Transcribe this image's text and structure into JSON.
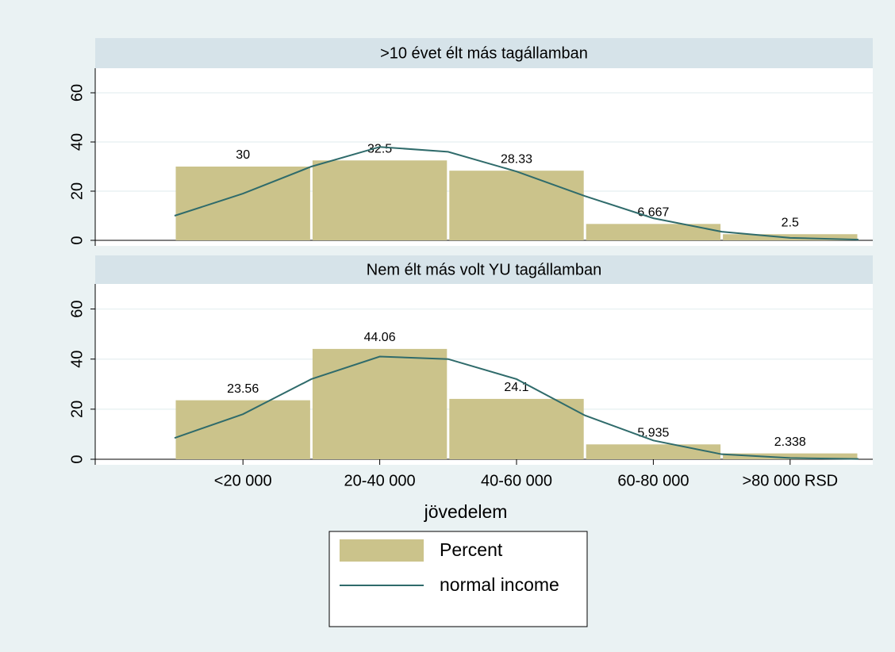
{
  "chart_data": [
    {
      "type": "bar",
      "title": ">10 évet élt más tagállamban",
      "series": [
        {
          "color": "#cbc38b",
          "values": [
            30,
            32.5,
            28.33,
            6.667,
            2.5
          ]
        },
        {
          "type": "line",
          "color": "#2f6b6b",
          "x": [
            0,
            0.5,
            1,
            1.5,
            2,
            2.5,
            3,
            3.5,
            4,
            4.5,
            5
          ],
          "values": [
            10,
            19,
            30,
            38,
            36,
            28,
            18,
            9,
            3.5,
            1,
            0.3
          ]
        }
      ],
      "ylim": [
        0,
        70
      ],
      "yticks": [
        0,
        20,
        40,
        60
      ],
      "grid": true
    },
    {
      "type": "bar",
      "title": "Nem élt más volt YU tagállamban",
      "categories": [
        "<20 000",
        "20-40 000",
        "40-60 000",
        "60-80 000",
        ">80 000 RSD"
      ],
      "xlabel": "jövedelem",
      "series": [
        {
          "name": "Percent",
          "color": "#cbc38b",
          "values": [
            23.56,
            44.06,
            24.1,
            5.935,
            2.338
          ]
        },
        {
          "name": "normal income",
          "type": "line",
          "color": "#2f6b6b",
          "x": [
            0,
            0.5,
            1,
            1.5,
            2,
            2.5,
            3,
            3.5,
            4,
            4.5,
            5
          ],
          "values": [
            8.5,
            18,
            32,
            41,
            40,
            32,
            17.5,
            7.5,
            2,
            0.5,
            0.1
          ]
        }
      ],
      "ylim": [
        0,
        70
      ],
      "yticks": [
        0,
        20,
        40,
        60
      ],
      "grid": true,
      "legend": "bottom"
    }
  ]
}
